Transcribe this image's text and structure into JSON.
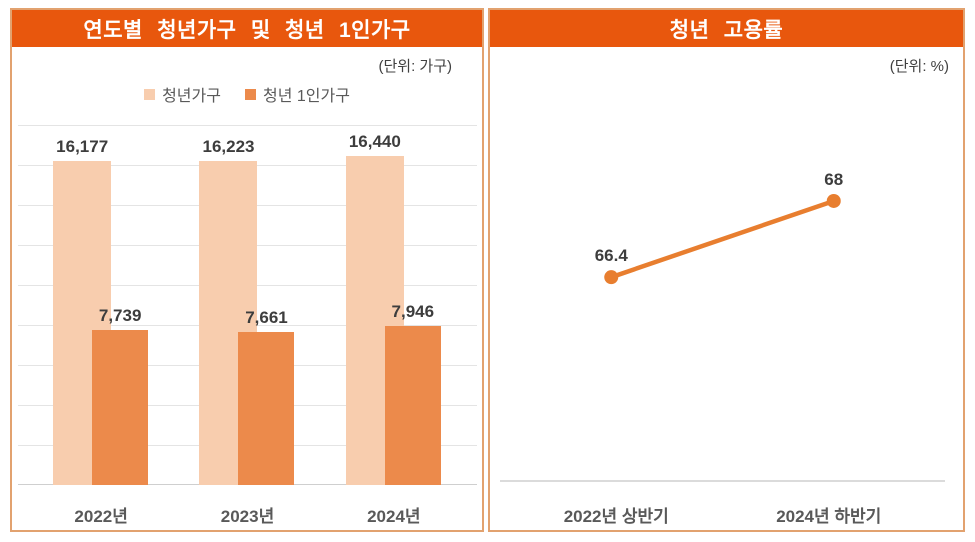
{
  "colors": {
    "header_bg": "#E8570D",
    "header_text": "#FFFFFF",
    "panel_border": "#E2A26F",
    "gridline": "#E4E4E4",
    "axis_baseline": "#CFCFCF",
    "value_label": "#3D3D3D",
    "axis_label": "#595959",
    "light_bar": "#F8CDAE",
    "dark_bar": "#EC8A4B",
    "line": "#E87E2F"
  },
  "chart_data": [
    {
      "type": "bar",
      "title": "연도별 청년가구 및 청년 1인가구",
      "unit_label": "(단위: 가구)",
      "categories": [
        "2022년",
        "2023년",
        "2024년"
      ],
      "series": [
        {
          "name": "청년가구",
          "color": "#F8CDAE",
          "values": [
            16177,
            16223,
            16440
          ],
          "value_labels": [
            "16,177",
            "16,223",
            "16,440"
          ]
        },
        {
          "name": "청년 1인가구",
          "color": "#EC8A4B",
          "values": [
            7739,
            7661,
            7946
          ],
          "value_labels": [
            "7,739",
            "7,661",
            "7,946"
          ]
        }
      ],
      "ylim": [
        0,
        18000
      ],
      "gridline_step": 2000,
      "grid": true,
      "legend_position": "top-center"
    },
    {
      "type": "line",
      "title": "청년 고용률",
      "unit_label": "(단위: %)",
      "categories": [
        "2022년 상반기",
        "2024년 하반기"
      ],
      "series": [
        {
          "name": "청년 고용률",
          "color": "#E87E2F",
          "values": [
            66.4,
            68
          ],
          "value_labels": [
            "66.4",
            "68"
          ]
        }
      ],
      "ylim": [
        62.1,
        69.7
      ],
      "grid": false,
      "legend_position": "none"
    }
  ]
}
